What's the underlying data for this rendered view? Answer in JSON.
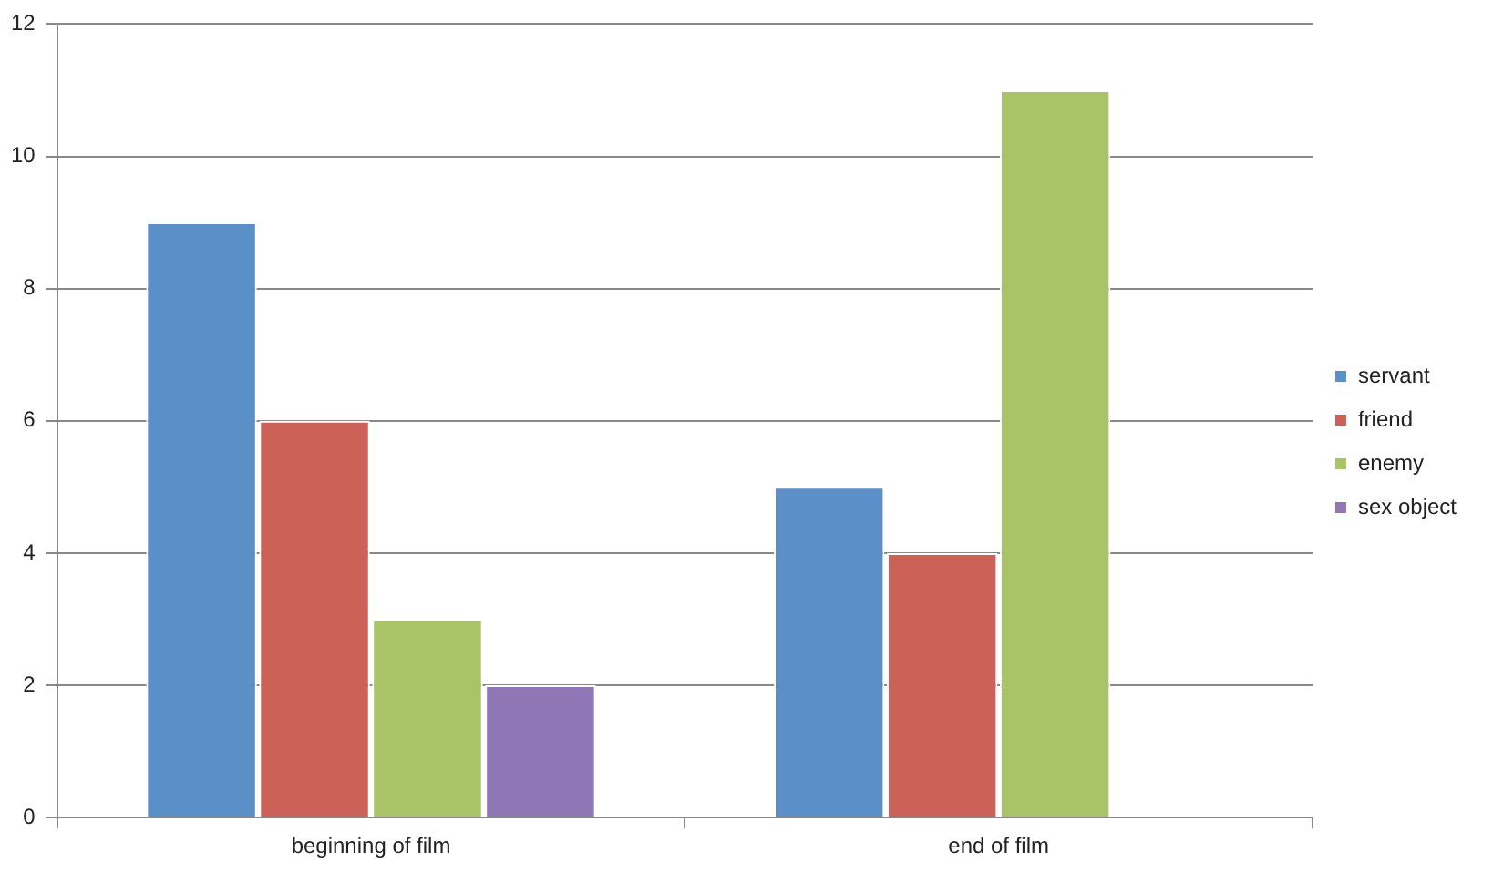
{
  "chart_data": {
    "type": "bar",
    "categories": [
      "beginning of film",
      "end of film"
    ],
    "series": [
      {
        "name": "servant",
        "color": "#5b8fc7",
        "values": [
          9,
          5
        ]
      },
      {
        "name": "friend",
        "color": "#cc6158",
        "values": [
          6,
          4
        ]
      },
      {
        "name": "enemy",
        "color": "#a9c467",
        "values": [
          3,
          11
        ]
      },
      {
        "name": "sex object",
        "color": "#8f77b5",
        "values": [
          2,
          null
        ]
      }
    ],
    "ylim": [
      0,
      12
    ],
    "yticks": [
      0,
      2,
      4,
      6,
      8,
      10,
      12
    ],
    "grid": "y",
    "legend": "right"
  }
}
